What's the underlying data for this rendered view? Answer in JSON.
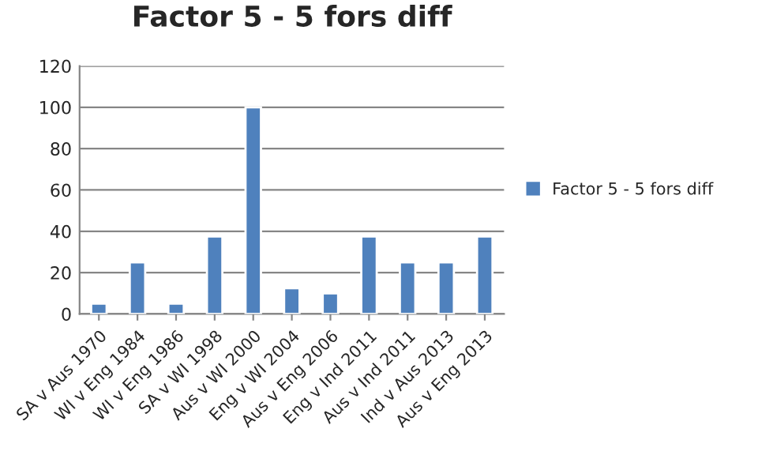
{
  "chart_data": {
    "type": "bar",
    "title": "Factor 5 - 5 fors diff",
    "categories": [
      "SA v Aus 1970",
      "WI v Eng 1984",
      "WI v Eng 1986",
      "SA v WI 1998",
      "Aus v WI 2000",
      "Eng v WI 2004",
      "Aus v Eng 2006",
      "Eng v Ind 2011",
      "Aus v Ind 2011",
      "Ind v Aus 2013",
      "Aus v Eng 2013"
    ],
    "series": [
      {
        "name": "Factor 5 - 5 fors diff",
        "color": "#4f81bd",
        "values": [
          5,
          25,
          5,
          37.5,
          100,
          12.5,
          10,
          37.5,
          25,
          25,
          37.5
        ]
      }
    ],
    "ylim": [
      0,
      120
    ],
    "yticks": [
      0,
      20,
      40,
      60,
      80,
      100,
      120
    ],
    "grid": "y",
    "legend": "right"
  }
}
